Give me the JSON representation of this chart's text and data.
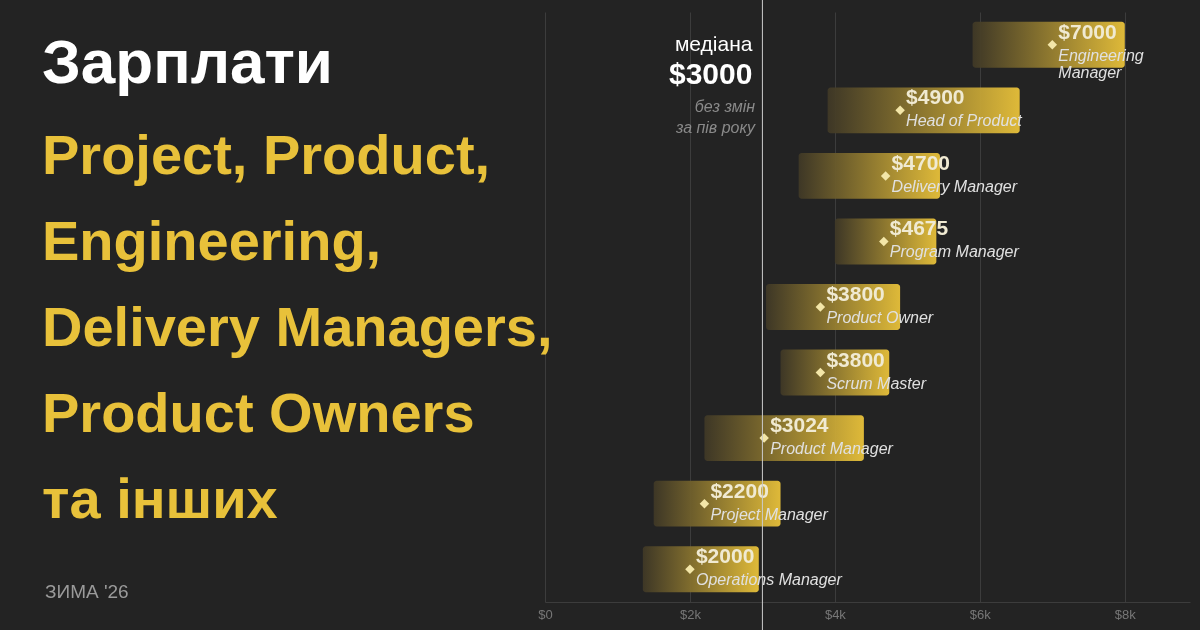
{
  "chart_data": {
    "type": "bar",
    "orientation": "horizontal",
    "title": "Зарплати",
    "subtitle": "Project, Product,\nEngineering,\nDelivery Managers,\nProduct Owners\nта інших",
    "categories": [
      "Engineering Manager",
      "Head of Product",
      "Delivery Manager",
      "Program Manager",
      "Product Owner",
      "Scrum Master",
      "Product Manager",
      "Project Manager",
      "Operations Manager"
    ],
    "series": [
      {
        "color": "#e8c13a",
        "base": [
          5900,
          3900,
          3500,
          4000,
          3050,
          3250,
          2200,
          1500,
          1350
        ],
        "values": [
          2100,
          2650,
          1950,
          1400,
          1850,
          1500,
          2200,
          1750,
          1600
        ]
      },
      {
        "type": "scatter",
        "color": "#f3e6a8",
        "values": [
          7000,
          4900,
          4700,
          4675,
          3800,
          3800,
          3024,
          2200,
          2000
        ],
        "value_labels": [
          "$7000",
          "$4900",
          "$4700",
          "$4675",
          "$3800",
          "$3800",
          "$3024",
          "$2200",
          "$2000"
        ]
      }
    ],
    "xlim": [
      0,
      8900
    ],
    "xticks": [
      {
        "value": 0,
        "label": "$0"
      },
      {
        "value": 2000,
        "label": "$2k"
      },
      {
        "value": 4000,
        "label": "$4k"
      },
      {
        "value": 6000,
        "label": "$6k"
      },
      {
        "value": 8000,
        "label": "$8k"
      }
    ],
    "grid": "x",
    "tick_labels": "x",
    "marker": "diamond",
    "ref_lines": [
      {
        "axis": "x",
        "value": 3000,
        "label": "медіана\n$3000",
        "color": "#cccccc"
      }
    ],
    "annotations": [
      "без змін\nза пів року",
      "ЗИМА '26"
    ]
  }
}
